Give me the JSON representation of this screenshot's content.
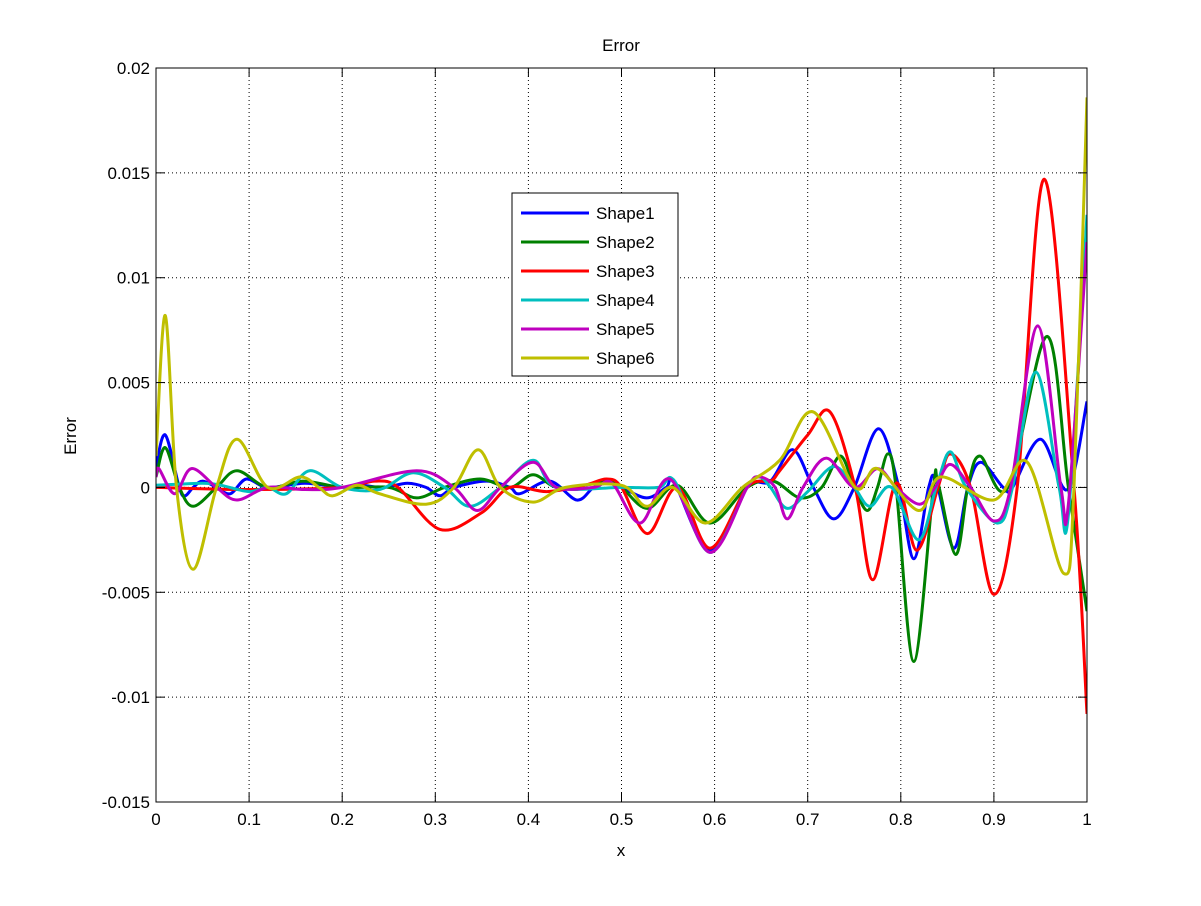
{
  "chart_data": {
    "type": "line",
    "title": "Error",
    "xlabel": "x",
    "ylabel": "Error",
    "xlim": [
      0,
      1
    ],
    "ylim": [
      -0.015,
      0.02
    ],
    "grid": true,
    "legend_placement": "upper-center",
    "xticks": [
      "0",
      "0.1",
      "0.2",
      "0.3",
      "0.4",
      "0.5",
      "0.6",
      "0.7",
      "0.8",
      "0.9",
      "1"
    ],
    "xtick_values": [
      0,
      0.1,
      0.2,
      0.3,
      0.4,
      0.5,
      0.6,
      0.7,
      0.8,
      0.9,
      1
    ],
    "yticks": [
      "-0.015",
      "-0.01",
      "-0.005",
      "0",
      "0.005",
      "0.01",
      "0.015",
      "0.02"
    ],
    "ytick_values": [
      -0.015,
      -0.01,
      -0.005,
      0,
      0.005,
      0.01,
      0.015,
      0.02
    ],
    "series": [
      {
        "name": "Shape1",
        "color": "#0000ff",
        "points": [
          [
            0,
            0.001
          ],
          [
            0.01,
            0.0025
          ],
          [
            0.025,
            0
          ],
          [
            0.031,
            -0.0004
          ],
          [
            0.04,
            0
          ],
          [
            0.05,
            0.0003
          ],
          [
            0.065,
            0
          ],
          [
            0.08,
            -0.0003
          ],
          [
            0.097,
            0.0004
          ],
          [
            0.12,
            0
          ],
          [
            0.16,
            0.0002
          ],
          [
            0.2,
            0
          ],
          [
            0.22,
            0.0001
          ],
          [
            0.245,
            0
          ],
          [
            0.27,
            0.0002
          ],
          [
            0.29,
            0
          ],
          [
            0.305,
            -0.0004
          ],
          [
            0.32,
            0
          ],
          [
            0.355,
            0.0003
          ],
          [
            0.38,
            0
          ],
          [
            0.391,
            -0.0003
          ],
          [
            0.423,
            0.0003
          ],
          [
            0.452,
            -0.0006
          ],
          [
            0.47,
            0
          ],
          [
            0.485,
            0.0002
          ],
          [
            0.5,
            0
          ],
          [
            0.527,
            -0.0005
          ],
          [
            0.548,
            0
          ],
          [
            0.557,
            0.0002
          ],
          [
            0.595,
            -0.003
          ],
          [
            0.635,
            0
          ],
          [
            0.66,
            0.0003
          ],
          [
            0.684,
            0.0018
          ],
          [
            0.706,
            0
          ],
          [
            0.728,
            -0.0015
          ],
          [
            0.75,
            0
          ],
          [
            0.776,
            0.0028
          ],
          [
            0.798,
            0
          ],
          [
            0.814,
            -0.0034
          ],
          [
            0.83,
            0
          ],
          [
            0.838,
            0.0003
          ],
          [
            0.857,
            -0.0029
          ],
          [
            0.872,
            0
          ],
          [
            0.886,
            0.0012
          ],
          [
            0.91,
            0
          ],
          [
            0.92,
            0
          ],
          [
            0.95,
            0.0023
          ],
          [
            0.979,
            -0.0001
          ],
          [
            1,
            0.0041
          ]
        ]
      },
      {
        "name": "Shape2",
        "color": "#008000",
        "points": [
          [
            0,
            0.0005
          ],
          [
            0.01,
            0.0019
          ],
          [
            0.025,
            0
          ],
          [
            0.04,
            -0.0009
          ],
          [
            0.065,
            0
          ],
          [
            0.087,
            0.0008
          ],
          [
            0.12,
            0
          ],
          [
            0.158,
            0.0003
          ],
          [
            0.2,
            0
          ],
          [
            0.25,
            0
          ],
          [
            0.28,
            -0.0005
          ],
          [
            0.31,
            0
          ],
          [
            0.348,
            0.0004
          ],
          [
            0.38,
            0
          ],
          [
            0.405,
            0.0006
          ],
          [
            0.43,
            0
          ],
          [
            0.46,
            0.0001
          ],
          [
            0.485,
            0.0003
          ],
          [
            0.5,
            0
          ],
          [
            0.528,
            -0.001
          ],
          [
            0.56,
            0.0001
          ],
          [
            0.595,
            -0.0017
          ],
          [
            0.635,
            0
          ],
          [
            0.663,
            0.0003
          ],
          [
            0.692,
            -0.0005
          ],
          [
            0.715,
            0
          ],
          [
            0.735,
            0.0015
          ],
          [
            0.75,
            0
          ],
          [
            0.764,
            -0.0011
          ],
          [
            0.775,
            0
          ],
          [
            0.786,
            0.0016
          ],
          [
            0.795,
            0
          ],
          [
            0.814,
            -0.0083
          ],
          [
            0.835,
            0
          ],
          [
            0.84,
            0.0002
          ],
          [
            0.859,
            -0.0032
          ],
          [
            0.872,
            0
          ],
          [
            0.885,
            0.0015
          ],
          [
            0.915,
            0
          ],
          [
            0.957,
            0.0072
          ],
          [
            0.98,
            0
          ],
          [
            1,
            -0.0059
          ]
        ]
      },
      {
        "name": "Shape3",
        "color": "#ff0000",
        "points": [
          [
            0,
            0
          ],
          [
            0.1,
            -0.0001
          ],
          [
            0.2,
            0
          ],
          [
            0.235,
            0.0003
          ],
          [
            0.26,
            0
          ],
          [
            0.305,
            -0.002
          ],
          [
            0.35,
            -0.0012
          ],
          [
            0.38,
            0
          ],
          [
            0.42,
            -0.0002
          ],
          [
            0.46,
            0.0001
          ],
          [
            0.484,
            0.0004
          ],
          [
            0.5,
            0
          ],
          [
            0.528,
            -0.0022
          ],
          [
            0.56,
            0
          ],
          [
            0.595,
            -0.0029
          ],
          [
            0.635,
            0
          ],
          [
            0.66,
            0.0003
          ],
          [
            0.67,
            0.0008
          ],
          [
            0.7,
            0.0025
          ],
          [
            0.724,
            0.0036
          ],
          [
            0.751,
            0
          ],
          [
            0.77,
            -0.0044
          ],
          [
            0.795,
            0.0002
          ],
          [
            0.817,
            -0.003
          ],
          [
            0.84,
            0
          ],
          [
            0.853,
            0.0016
          ],
          [
            0.875,
            0
          ],
          [
            0.9,
            -0.0051
          ],
          [
            0.925,
            0
          ],
          [
            0.954,
            0.0147
          ],
          [
            0.986,
            0
          ],
          [
            1,
            -0.0108
          ]
        ]
      },
      {
        "name": "Shape4",
        "color": "#00bfbf",
        "points": [
          [
            0,
            0.0001
          ],
          [
            0.05,
            0.0002
          ],
          [
            0.07,
            0.0001
          ],
          [
            0.1,
            -0.0002
          ],
          [
            0.12,
            0
          ],
          [
            0.14,
            -0.0003
          ],
          [
            0.165,
            0.0008
          ],
          [
            0.2,
            0
          ],
          [
            0.24,
            -0.0001
          ],
          [
            0.276,
            0.0007
          ],
          [
            0.31,
            0
          ],
          [
            0.337,
            -0.0009
          ],
          [
            0.37,
            0
          ],
          [
            0.405,
            0.0013
          ],
          [
            0.43,
            0
          ],
          [
            0.5,
            0
          ],
          [
            0.54,
            0
          ],
          [
            0.557,
            0.0003
          ],
          [
            0.595,
            -0.0031
          ],
          [
            0.635,
            0
          ],
          [
            0.648,
            0.0005
          ],
          [
            0.66,
            0
          ],
          [
            0.678,
            -0.001
          ],
          [
            0.7,
            -0.0002
          ],
          [
            0.728,
            0.001
          ],
          [
            0.75,
            0
          ],
          [
            0.767,
            -0.0009
          ],
          [
            0.79,
            0
          ],
          [
            0.819,
            -0.0025
          ],
          [
            0.838,
            0
          ],
          [
            0.853,
            0.0017
          ],
          [
            0.87,
            0
          ],
          [
            0.904,
            -0.0017
          ],
          [
            0.92,
            0
          ],
          [
            0.945,
            0.0055
          ],
          [
            0.97,
            0
          ],
          [
            0.98,
            -0.0013
          ],
          [
            1,
            0.013
          ]
        ]
      },
      {
        "name": "Shape5",
        "color": "#bf00bf",
        "points": [
          [
            0,
            0.0005
          ],
          [
            0.003,
            0.0009
          ],
          [
            0.02,
            -0.0003
          ],
          [
            0.038,
            0.0009
          ],
          [
            0.065,
            0
          ],
          [
            0.087,
            -0.0006
          ],
          [
            0.12,
            0
          ],
          [
            0.16,
            -0.0001
          ],
          [
            0.2,
            0
          ],
          [
            0.28,
            0.0008
          ],
          [
            0.32,
            0
          ],
          [
            0.345,
            -0.0011
          ],
          [
            0.37,
            0
          ],
          [
            0.405,
            0.0012
          ],
          [
            0.43,
            0
          ],
          [
            0.47,
            0
          ],
          [
            0.49,
            0.0002
          ],
          [
            0.52,
            -0.0017
          ],
          [
            0.552,
            0.0004
          ],
          [
            0.595,
            -0.0031
          ],
          [
            0.635,
            0
          ],
          [
            0.648,
            0.0005
          ],
          [
            0.665,
            0
          ],
          [
            0.678,
            -0.0015
          ],
          [
            0.695,
            0
          ],
          [
            0.72,
            0.0014
          ],
          [
            0.75,
            0
          ],
          [
            0.775,
            0.0009
          ],
          [
            0.795,
            0
          ],
          [
            0.82,
            -0.0008
          ],
          [
            0.837,
            0
          ],
          [
            0.853,
            0.0011
          ],
          [
            0.875,
            0
          ],
          [
            0.9,
            -0.0016
          ],
          [
            0.918,
            0
          ],
          [
            0.947,
            0.0077
          ],
          [
            0.972,
            0
          ],
          [
            0.98,
            -0.0008
          ],
          [
            1,
            0.0117
          ]
        ]
      },
      {
        "name": "Shape6",
        "color": "#bfbf00",
        "points": [
          [
            0,
            0.0015
          ],
          [
            0.01,
            0.0082
          ],
          [
            0.022,
            0
          ],
          [
            0.04,
            -0.0039
          ],
          [
            0.065,
            0
          ],
          [
            0.087,
            0.0023
          ],
          [
            0.12,
            0
          ],
          [
            0.155,
            0.0005
          ],
          [
            0.175,
            0
          ],
          [
            0.19,
            -0.0004
          ],
          [
            0.216,
            0.0001
          ],
          [
            0.24,
            -0.0003
          ],
          [
            0.29,
            -0.0008
          ],
          [
            0.32,
            0
          ],
          [
            0.346,
            0.0018
          ],
          [
            0.37,
            0
          ],
          [
            0.405,
            -0.0007
          ],
          [
            0.44,
            0
          ],
          [
            0.5,
            0.0001
          ],
          [
            0.527,
            -0.0009
          ],
          [
            0.555,
            0
          ],
          [
            0.59,
            -0.0017
          ],
          [
            0.63,
            0
          ],
          [
            0.67,
            0.0013
          ],
          [
            0.706,
            0.0036
          ],
          [
            0.751,
            0
          ],
          [
            0.775,
            0.0009
          ],
          [
            0.819,
            -0.0011
          ],
          [
            0.843,
            0.0005
          ],
          [
            0.9,
            -0.0006
          ],
          [
            0.936,
            0.0012
          ],
          [
            0.975,
            -0.0041
          ],
          [
            0.986,
            0
          ],
          [
            1,
            0.0186
          ]
        ]
      }
    ]
  }
}
